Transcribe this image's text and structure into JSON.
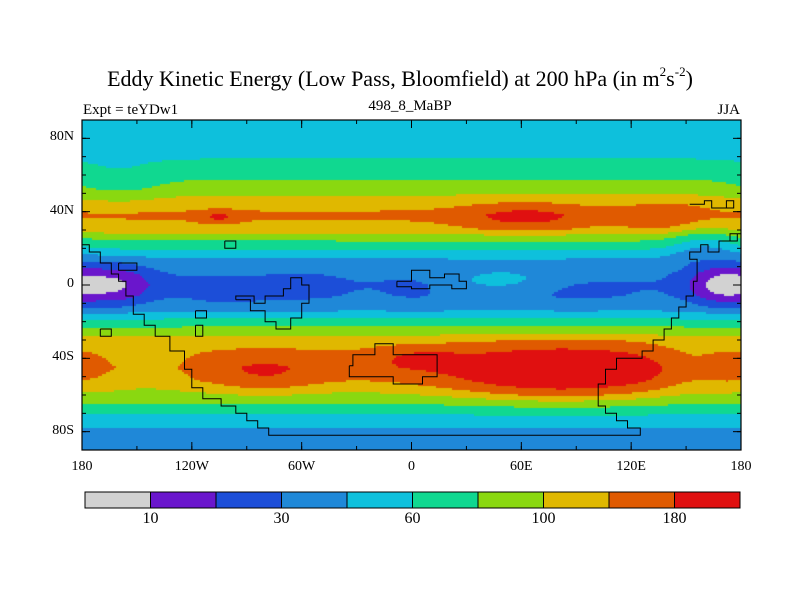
{
  "chart_data": {
    "type": "heatmap",
    "title": "Eddy Kinetic Energy (Low Pass, Bloomfield) at 200 hPa (in m",
    "title_units": {
      "sup1": "2",
      "mid": "s",
      "sup2": "-2",
      "end": ")"
    },
    "left_string": "Expt = teYDw1",
    "center_string": "498_8_MaBP",
    "right_string": "JJA",
    "x_range": [
      -180,
      180
    ],
    "y_range": [
      -90,
      90
    ],
    "x_ticks": [
      {
        "value": -180,
        "label": "180"
      },
      {
        "value": -120,
        "label": "120W"
      },
      {
        "value": -60,
        "label": "60W"
      },
      {
        "value": 0,
        "label": "0"
      },
      {
        "value": 60,
        "label": "60E"
      },
      {
        "value": 120,
        "label": "120E"
      },
      {
        "value": 180,
        "label": "180"
      }
    ],
    "y_ticks": [
      {
        "value": 80,
        "label": "80N"
      },
      {
        "value": 40,
        "label": "40N"
      },
      {
        "value": 0,
        "label": "0"
      },
      {
        "value": -40,
        "label": "40S"
      },
      {
        "value": -80,
        "label": "80S"
      }
    ],
    "contour_levels": [
      0,
      10,
      20,
      30,
      45,
      60,
      80,
      100,
      120,
      150,
      180
    ],
    "colorbar_colors": [
      "#d2d2d2",
      "#6a16cc",
      "#1c4ed8",
      "#1f88d8",
      "#0ec0dc",
      "#10d890",
      "#8ad810",
      "#e0b800",
      "#e05a00",
      "#e01010"
    ],
    "colorbar_labels": [
      {
        "boundary": 1,
        "label": "10"
      },
      {
        "boundary": 3,
        "label": "30"
      },
      {
        "boundary": 5,
        "label": "60"
      },
      {
        "boundary": 7,
        "label": "100"
      },
      {
        "boundary": 9,
        "label": "180"
      }
    ],
    "zonal_profile": [
      {
        "lat": 90,
        "value": 45
      },
      {
        "lat": 80,
        "value": 50
      },
      {
        "lat": 70,
        "value": 58
      },
      {
        "lat": 60,
        "value": 75
      },
      {
        "lat": 52,
        "value": 92
      },
      {
        "lat": 45,
        "value": 110
      },
      {
        "lat": 38,
        "value": 125
      },
      {
        "lat": 30,
        "value": 110
      },
      {
        "lat": 24,
        "value": 80
      },
      {
        "lat": 18,
        "value": 55
      },
      {
        "lat": 12,
        "value": 38
      },
      {
        "lat": 6,
        "value": 32
      },
      {
        "lat": 0,
        "value": 30
      },
      {
        "lat": -6,
        "value": 32
      },
      {
        "lat": -12,
        "value": 38
      },
      {
        "lat": -18,
        "value": 58
      },
      {
        "lat": -24,
        "value": 85
      },
      {
        "lat": -30,
        "value": 108
      },
      {
        "lat": -37,
        "value": 120
      },
      {
        "lat": -45,
        "value": 130
      },
      {
        "lat": -52,
        "value": 118
      },
      {
        "lat": -60,
        "value": 95
      },
      {
        "lat": -66,
        "value": 75
      },
      {
        "lat": -72,
        "value": 55
      },
      {
        "lat": -78,
        "value": 45
      },
      {
        "lat": -85,
        "value": 40
      },
      {
        "lat": -90,
        "value": 38
      }
    ],
    "anomalies": [
      {
        "lon": -163,
        "lat": 0,
        "rlon": 22,
        "rlat": 12,
        "amp": -22
      },
      {
        "lon": 168,
        "lat": 0,
        "rlon": 18,
        "rlat": 12,
        "amp": -22
      },
      {
        "lon": -100,
        "lat": -4,
        "rlon": 22,
        "rlat": 7,
        "amp": -10
      },
      {
        "lon": -60,
        "lat": -2,
        "rlon": 22,
        "rlat": 8,
        "amp": -6
      },
      {
        "lon": 5,
        "lat": -1,
        "rlon": 20,
        "rlat": 9,
        "amp": -6
      },
      {
        "lon": 50,
        "lat": 2,
        "rlon": 40,
        "rlat": 8,
        "amp": 18
      },
      {
        "lon": 85,
        "lat": -3,
        "rlon": 30,
        "rlat": 7,
        "amp": -8
      },
      {
        "lon": 62,
        "lat": 37,
        "rlon": 32,
        "rlat": 7,
        "amp": 40
      },
      {
        "lon": 138,
        "lat": 37,
        "rlon": 22,
        "rlat": 8,
        "amp": 22
      },
      {
        "lon": -105,
        "lat": 37,
        "rlon": 10,
        "rlat": 3,
        "amp": 35
      },
      {
        "lon": 82,
        "lat": -47,
        "rlon": 58,
        "rlat": 13,
        "amp": 80
      },
      {
        "lon": 5,
        "lat": -40,
        "rlon": 25,
        "rlat": 6,
        "amp": 30
      },
      {
        "lon": -80,
        "lat": -48,
        "rlon": 28,
        "rlat": 10,
        "amp": 28
      },
      {
        "lon": -145,
        "lat": -45,
        "rlon": 22,
        "rlat": 10,
        "amp": -20
      },
      {
        "lon": 150,
        "lat": -45,
        "rlon": 18,
        "rlat": 12,
        "amp": -18
      },
      {
        "lon": -160,
        "lat": 55,
        "rlon": 25,
        "rlat": 12,
        "amp": -15
      },
      {
        "lon": 160,
        "lat": 25,
        "rlon": 20,
        "rlat": 10,
        "amp": -25
      }
    ],
    "coastlines": [
      [
        [
          -180,
          22
        ],
        [
          -176,
          22
        ],
        [
          -176,
          18
        ],
        [
          -170,
          18
        ],
        [
          -170,
          12
        ],
        [
          -164,
          12
        ],
        [
          -164,
          6
        ],
        [
          -160,
          6
        ],
        [
          -160,
          2
        ],
        [
          -156,
          2
        ],
        [
          -156,
          -6
        ],
        [
          -152,
          -6
        ],
        [
          -152,
          -16
        ],
        [
          -146,
          -16
        ],
        [
          -146,
          -22
        ],
        [
          -140,
          -22
        ],
        [
          -140,
          -28
        ],
        [
          -132,
          -28
        ],
        [
          -132,
          -36
        ],
        [
          -124,
          -36
        ],
        [
          -124,
          -46
        ],
        [
          -120,
          -46
        ],
        [
          -120,
          -56
        ],
        [
          -114,
          -56
        ],
        [
          -114,
          -62
        ],
        [
          -104,
          -62
        ],
        [
          -104,
          -66
        ],
        [
          -96,
          -66
        ],
        [
          -96,
          -70
        ],
        [
          -90,
          -70
        ],
        [
          -90,
          -74
        ],
        [
          -84,
          -74
        ],
        [
          -84,
          -78
        ],
        [
          -78,
          -78
        ],
        [
          -78,
          -82
        ],
        [
          -30,
          -82
        ],
        [
          20,
          -82
        ],
        [
          70,
          -82
        ],
        [
          110,
          -82
        ],
        [
          125,
          -82
        ],
        [
          125,
          -78
        ],
        [
          118,
          -78
        ],
        [
          118,
          -74
        ],
        [
          112,
          -74
        ],
        [
          112,
          -70
        ],
        [
          106,
          -70
        ],
        [
          106,
          -66
        ],
        [
          102,
          -66
        ],
        [
          102,
          -60
        ],
        [
          102,
          -54
        ],
        [
          106,
          -54
        ],
        [
          106,
          -46
        ],
        [
          112,
          -46
        ],
        [
          112,
          -40
        ],
        [
          120,
          -40
        ],
        [
          126,
          -40
        ],
        [
          126,
          -36
        ],
        [
          132,
          -36
        ],
        [
          132,
          -30
        ],
        [
          138,
          -30
        ],
        [
          138,
          -24
        ],
        [
          142,
          -24
        ],
        [
          142,
          -18
        ],
        [
          146,
          -18
        ],
        [
          146,
          -12
        ],
        [
          150,
          -12
        ],
        [
          150,
          -6
        ],
        [
          154,
          -6
        ],
        [
          154,
          2
        ],
        [
          156,
          2
        ],
        [
          156,
          14
        ],
        [
          152,
          14
        ],
        [
          152,
          18
        ],
        [
          158,
          18
        ],
        [
          158,
          22
        ],
        [
          162,
          22
        ],
        [
          162,
          18
        ],
        [
          168,
          18
        ],
        [
          168,
          24
        ],
        [
          174,
          24
        ],
        [
          174,
          28
        ],
        [
          180,
          28
        ]
      ],
      [
        [
          -96,
          -8
        ],
        [
          -88,
          -8
        ],
        [
          -88,
          -14
        ],
        [
          -80,
          -14
        ],
        [
          -80,
          -20
        ],
        [
          -74,
          -20
        ],
        [
          -74,
          -24
        ],
        [
          -66,
          -24
        ],
        [
          -66,
          -18
        ],
        [
          -60,
          -18
        ],
        [
          -60,
          -10
        ],
        [
          -56,
          -10
        ],
        [
          -56,
          0
        ],
        [
          -60,
          0
        ],
        [
          -60,
          4
        ],
        [
          -66,
          4
        ],
        [
          -66,
          -2
        ],
        [
          -70,
          -2
        ],
        [
          -70,
          -6
        ],
        [
          -80,
          -6
        ],
        [
          -80,
          -10
        ],
        [
          -86,
          -10
        ],
        [
          -86,
          -6
        ],
        [
          -96,
          -6
        ],
        [
          -96,
          -8
        ]
      ],
      [
        [
          -34,
          -44
        ],
        [
          -32,
          -44
        ],
        [
          -32,
          -38
        ],
        [
          -20,
          -38
        ],
        [
          -20,
          -32
        ],
        [
          -10,
          -32
        ],
        [
          -10,
          -38
        ],
        [
          0,
          -38
        ],
        [
          14,
          -38
        ],
        [
          14,
          -50
        ],
        [
          6,
          -50
        ],
        [
          6,
          -54
        ],
        [
          -10,
          -54
        ],
        [
          -10,
          -50
        ],
        [
          -30,
          -50
        ],
        [
          -34,
          -50
        ],
        [
          -34,
          -44
        ]
      ],
      [
        [
          -8,
          2
        ],
        [
          0,
          2
        ],
        [
          0,
          8
        ],
        [
          10,
          8
        ],
        [
          10,
          4
        ],
        [
          18,
          4
        ],
        [
          18,
          6
        ],
        [
          26,
          6
        ],
        [
          26,
          2
        ],
        [
          30,
          2
        ],
        [
          30,
          -2
        ],
        [
          22,
          -2
        ],
        [
          22,
          0
        ],
        [
          10,
          0
        ],
        [
          10,
          -2
        ],
        [
          0,
          -2
        ],
        [
          0,
          -1
        ],
        [
          -8,
          -1
        ],
        [
          -8,
          2
        ]
      ],
      [
        [
          -102,
          24
        ],
        [
          -102,
          20
        ],
        [
          -96,
          20
        ],
        [
          -96,
          24
        ],
        [
          -102,
          24
        ]
      ],
      [
        [
          -160,
          12
        ],
        [
          -160,
          8
        ],
        [
          -150,
          8
        ],
        [
          -150,
          12
        ],
        [
          -160,
          12
        ]
      ],
      [
        [
          -118,
          -22
        ],
        [
          -114,
          -22
        ],
        [
          -114,
          -28
        ],
        [
          -118,
          -28
        ],
        [
          -118,
          -22
        ]
      ],
      [
        [
          -118,
          -14
        ],
        [
          -112,
          -14
        ],
        [
          -112,
          -18
        ],
        [
          -118,
          -18
        ],
        [
          -118,
          -14
        ]
      ],
      [
        [
          -170,
          -24
        ],
        [
          -164,
          -24
        ],
        [
          -164,
          -28
        ],
        [
          -170,
          -28
        ],
        [
          -170,
          -24
        ]
      ],
      [
        [
          152,
          44
        ],
        [
          160,
          44
        ],
        [
          160,
          46
        ],
        [
          164,
          46
        ],
        [
          164,
          42
        ],
        [
          172,
          42
        ],
        [
          172,
          46
        ],
        [
          176,
          46
        ],
        [
          176,
          42
        ],
        [
          172,
          42
        ]
      ],
      [
        [
          174,
          24
        ],
        [
          178,
          24
        ],
        [
          178,
          28
        ]
      ]
    ]
  }
}
